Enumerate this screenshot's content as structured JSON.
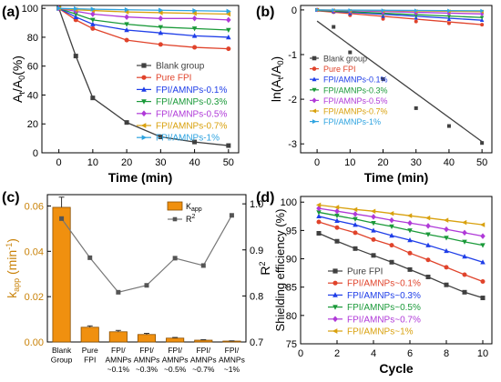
{
  "chart_data": [
    {
      "panel": "(a)",
      "type": "line",
      "xlabel": "Time (min)",
      "ylabel": "At/A0(%)",
      "xlim": [
        -5,
        53
      ],
      "ylim": [
        0,
        102
      ],
      "xticks": [
        0,
        10,
        20,
        30,
        40,
        50
      ],
      "yticks": [
        0,
        20,
        40,
        60,
        80,
        100
      ],
      "x": [
        0,
        5,
        10,
        20,
        30,
        40,
        50
      ],
      "legend": "right",
      "series": [
        {
          "name": "Blank group",
          "color": "#404040",
          "marker": "square",
          "values": [
            100,
            67,
            38,
            21,
            11,
            7.5,
            5
          ]
        },
        {
          "name": "Pure FPI",
          "color": "#e0432b",
          "marker": "circle",
          "values": [
            100,
            92,
            86,
            78,
            75,
            73,
            72
          ]
        },
        {
          "name": "FPI/AMNPs-0.1%",
          "color": "#1f3ee8",
          "marker": "triangle-up",
          "values": [
            100,
            94,
            89,
            85,
            83,
            81,
            80
          ]
        },
        {
          "name": "FPI/AMNPs-0.3%",
          "color": "#1b9a3a",
          "marker": "triangle-down",
          "values": [
            100,
            96,
            92,
            89,
            87,
            86,
            85
          ]
        },
        {
          "name": "FPI/AMNPs-0.5%",
          "color": "#b03ad8",
          "marker": "diamond",
          "values": [
            100,
            98,
            96,
            94,
            93,
            93,
            92
          ]
        },
        {
          "name": "FPI/AMNPs-0.7%",
          "color": "#d9a10e",
          "marker": "triangle-left",
          "values": [
            100,
            99,
            98.5,
            97.5,
            97,
            96.5,
            96
          ]
        },
        {
          "name": "FPI/AMNPs-1%",
          "color": "#2ea3e0",
          "marker": "triangle-right",
          "values": [
            100,
            99.7,
            99.4,
            99,
            98.7,
            98.4,
            98
          ]
        }
      ]
    },
    {
      "panel": "(b)",
      "type": "scatter",
      "xlabel": "Time (min)",
      "ylabel": "ln(At/A0)",
      "xlim": [
        -5,
        53
      ],
      "ylim": [
        -3.2,
        0.1
      ],
      "xticks": [
        0,
        10,
        20,
        30,
        40,
        50
      ],
      "yticks": [
        0,
        -1,
        -2,
        -3
      ],
      "x": [
        0,
        5,
        10,
        20,
        30,
        40,
        50
      ],
      "legend": "left",
      "series": [
        {
          "name": "Blank group",
          "color": "#404040",
          "marker": "square",
          "values": [
            0,
            -0.38,
            -0.95,
            -1.55,
            -2.2,
            -2.6,
            -2.98
          ],
          "fit": [
            -0.25,
            -2.95
          ]
        },
        {
          "name": "Pure FPI",
          "color": "#e0432b",
          "marker": "circle",
          "values": [
            0,
            -0.05,
            -0.12,
            -0.2,
            -0.26,
            -0.3,
            -0.33
          ],
          "fit": [
            -0.02,
            -0.33
          ]
        },
        {
          "name": "FPI/AMNPs-0.1%",
          "color": "#1f3ee8",
          "marker": "triangle-up",
          "values": [
            0,
            -0.04,
            -0.08,
            -0.14,
            -0.18,
            -0.21,
            -0.23
          ],
          "fit": [
            -0.01,
            -0.23
          ]
        },
        {
          "name": "FPI/AMNPs-0.3%",
          "color": "#1b9a3a",
          "marker": "triangle-down",
          "values": [
            0,
            -0.03,
            -0.06,
            -0.1,
            -0.13,
            -0.15,
            -0.17
          ],
          "fit": [
            -0.01,
            -0.17
          ]
        },
        {
          "name": "FPI/AMNPs-0.5%",
          "color": "#b03ad8",
          "marker": "diamond",
          "values": [
            0,
            -0.02,
            -0.04,
            -0.06,
            -0.07,
            -0.08,
            -0.09
          ],
          "fit": [
            0,
            -0.09
          ]
        },
        {
          "name": "FPI/AMNPs-0.7%",
          "color": "#d9a10e",
          "marker": "triangle-left",
          "values": [
            0,
            -0.01,
            -0.02,
            -0.025,
            -0.03,
            -0.035,
            -0.04
          ],
          "fit": [
            0,
            -0.04
          ]
        },
        {
          "name": "FPI/AMNPs-1%",
          "color": "#2ea3e0",
          "marker": "triangle-right",
          "values": [
            0,
            -0.005,
            -0.008,
            -0.012,
            -0.014,
            -0.017,
            -0.02
          ],
          "fit": [
            0,
            -0.02
          ]
        }
      ]
    },
    {
      "panel": "(c)",
      "type": "bar",
      "categories": [
        [
          "Blank",
          "Group"
        ],
        [
          "Pure",
          "FPI"
        ],
        [
          "FPI/",
          "AMNPs",
          "~0.1%"
        ],
        [
          "FPI/",
          "AMNPs",
          "~0.3%"
        ],
        [
          "FPI/",
          "AMNPs",
          "~0.5%"
        ],
        [
          "FPI/",
          "AMNPs",
          "~0.7%"
        ],
        [
          "FPI/",
          "AMNPs",
          "~1%"
        ]
      ],
      "ylabel": "kapp (min-1)",
      "y2label": "R2",
      "ylim": [
        0,
        0.065
      ],
      "y2lim": [
        0.7,
        1.02
      ],
      "yticks": [
        0.0,
        0.02,
        0.04,
        0.06
      ],
      "y2ticks": [
        0.7,
        0.8,
        0.9,
        1.0
      ],
      "legend": "top-right",
      "series": [
        {
          "name": "Kapp",
          "color": "#f0900f",
          "values": [
            0.0594,
            0.0065,
            0.0045,
            0.0033,
            0.0017,
            0.0008,
            0.0004
          ],
          "errors": [
            0.0045,
            0.0006,
            0.0006,
            0.0005,
            0.0003,
            0.0002,
            0.0001
          ]
        },
        {
          "name": "R2",
          "color": "#555555",
          "axis": "right",
          "values": [
            0.968,
            0.883,
            0.808,
            0.823,
            0.882,
            0.866,
            0.975
          ]
        }
      ]
    },
    {
      "panel": "(d)",
      "type": "line",
      "xlabel": "Cycle",
      "ylabel": "Shielding efficiency (%)",
      "xlim": [
        0,
        10.5
      ],
      "ylim": [
        75,
        101
      ],
      "xticks": [
        0,
        2,
        4,
        6,
        8,
        10
      ],
      "yticks": [
        75,
        80,
        85,
        90,
        95,
        100
      ],
      "x": [
        1,
        2,
        3,
        4,
        5,
        6,
        7,
        8,
        9,
        10
      ],
      "legend": "bottom-left",
      "series": [
        {
          "name": "Pure FPI",
          "color": "#404040",
          "marker": "square",
          "values": [
            94.5,
            93.1,
            91.8,
            90.6,
            89.4,
            88.1,
            86.8,
            85.4,
            84.1,
            83.1
          ]
        },
        {
          "name": "FPI/AMNPs~0.1%",
          "color": "#e0432b",
          "marker": "circle",
          "values": [
            96.5,
            95.5,
            94.6,
            93.4,
            92.4,
            91.0,
            89.8,
            88.5,
            87.2,
            86.0
          ]
        },
        {
          "name": "FPI/AMNPs~0.3%",
          "color": "#1f3ee8",
          "marker": "triangle-up",
          "values": [
            97.5,
            96.7,
            96.0,
            95.0,
            94.1,
            93.3,
            92.4,
            91.4,
            90.4,
            89.4
          ]
        },
        {
          "name": "FPI/AMNPs~0.5%",
          "color": "#1b9a3a",
          "marker": "triangle-down",
          "values": [
            98.2,
            97.6,
            97.0,
            96.3,
            95.7,
            95.0,
            94.3,
            93.7,
            93.0,
            92.4
          ]
        },
        {
          "name": "FPI/AMNPs~0.7%",
          "color": "#b03ad8",
          "marker": "diamond",
          "values": [
            98.9,
            98.4,
            97.9,
            97.4,
            96.8,
            96.3,
            95.8,
            95.2,
            94.6,
            94.0
          ]
        },
        {
          "name": "FPI/AMNPs~1%",
          "color": "#d9a10e",
          "marker": "triangle-left",
          "values": [
            99.5,
            99.1,
            98.7,
            98.4,
            98.0,
            97.6,
            97.2,
            96.8,
            96.4,
            96.0
          ]
        }
      ]
    }
  ]
}
